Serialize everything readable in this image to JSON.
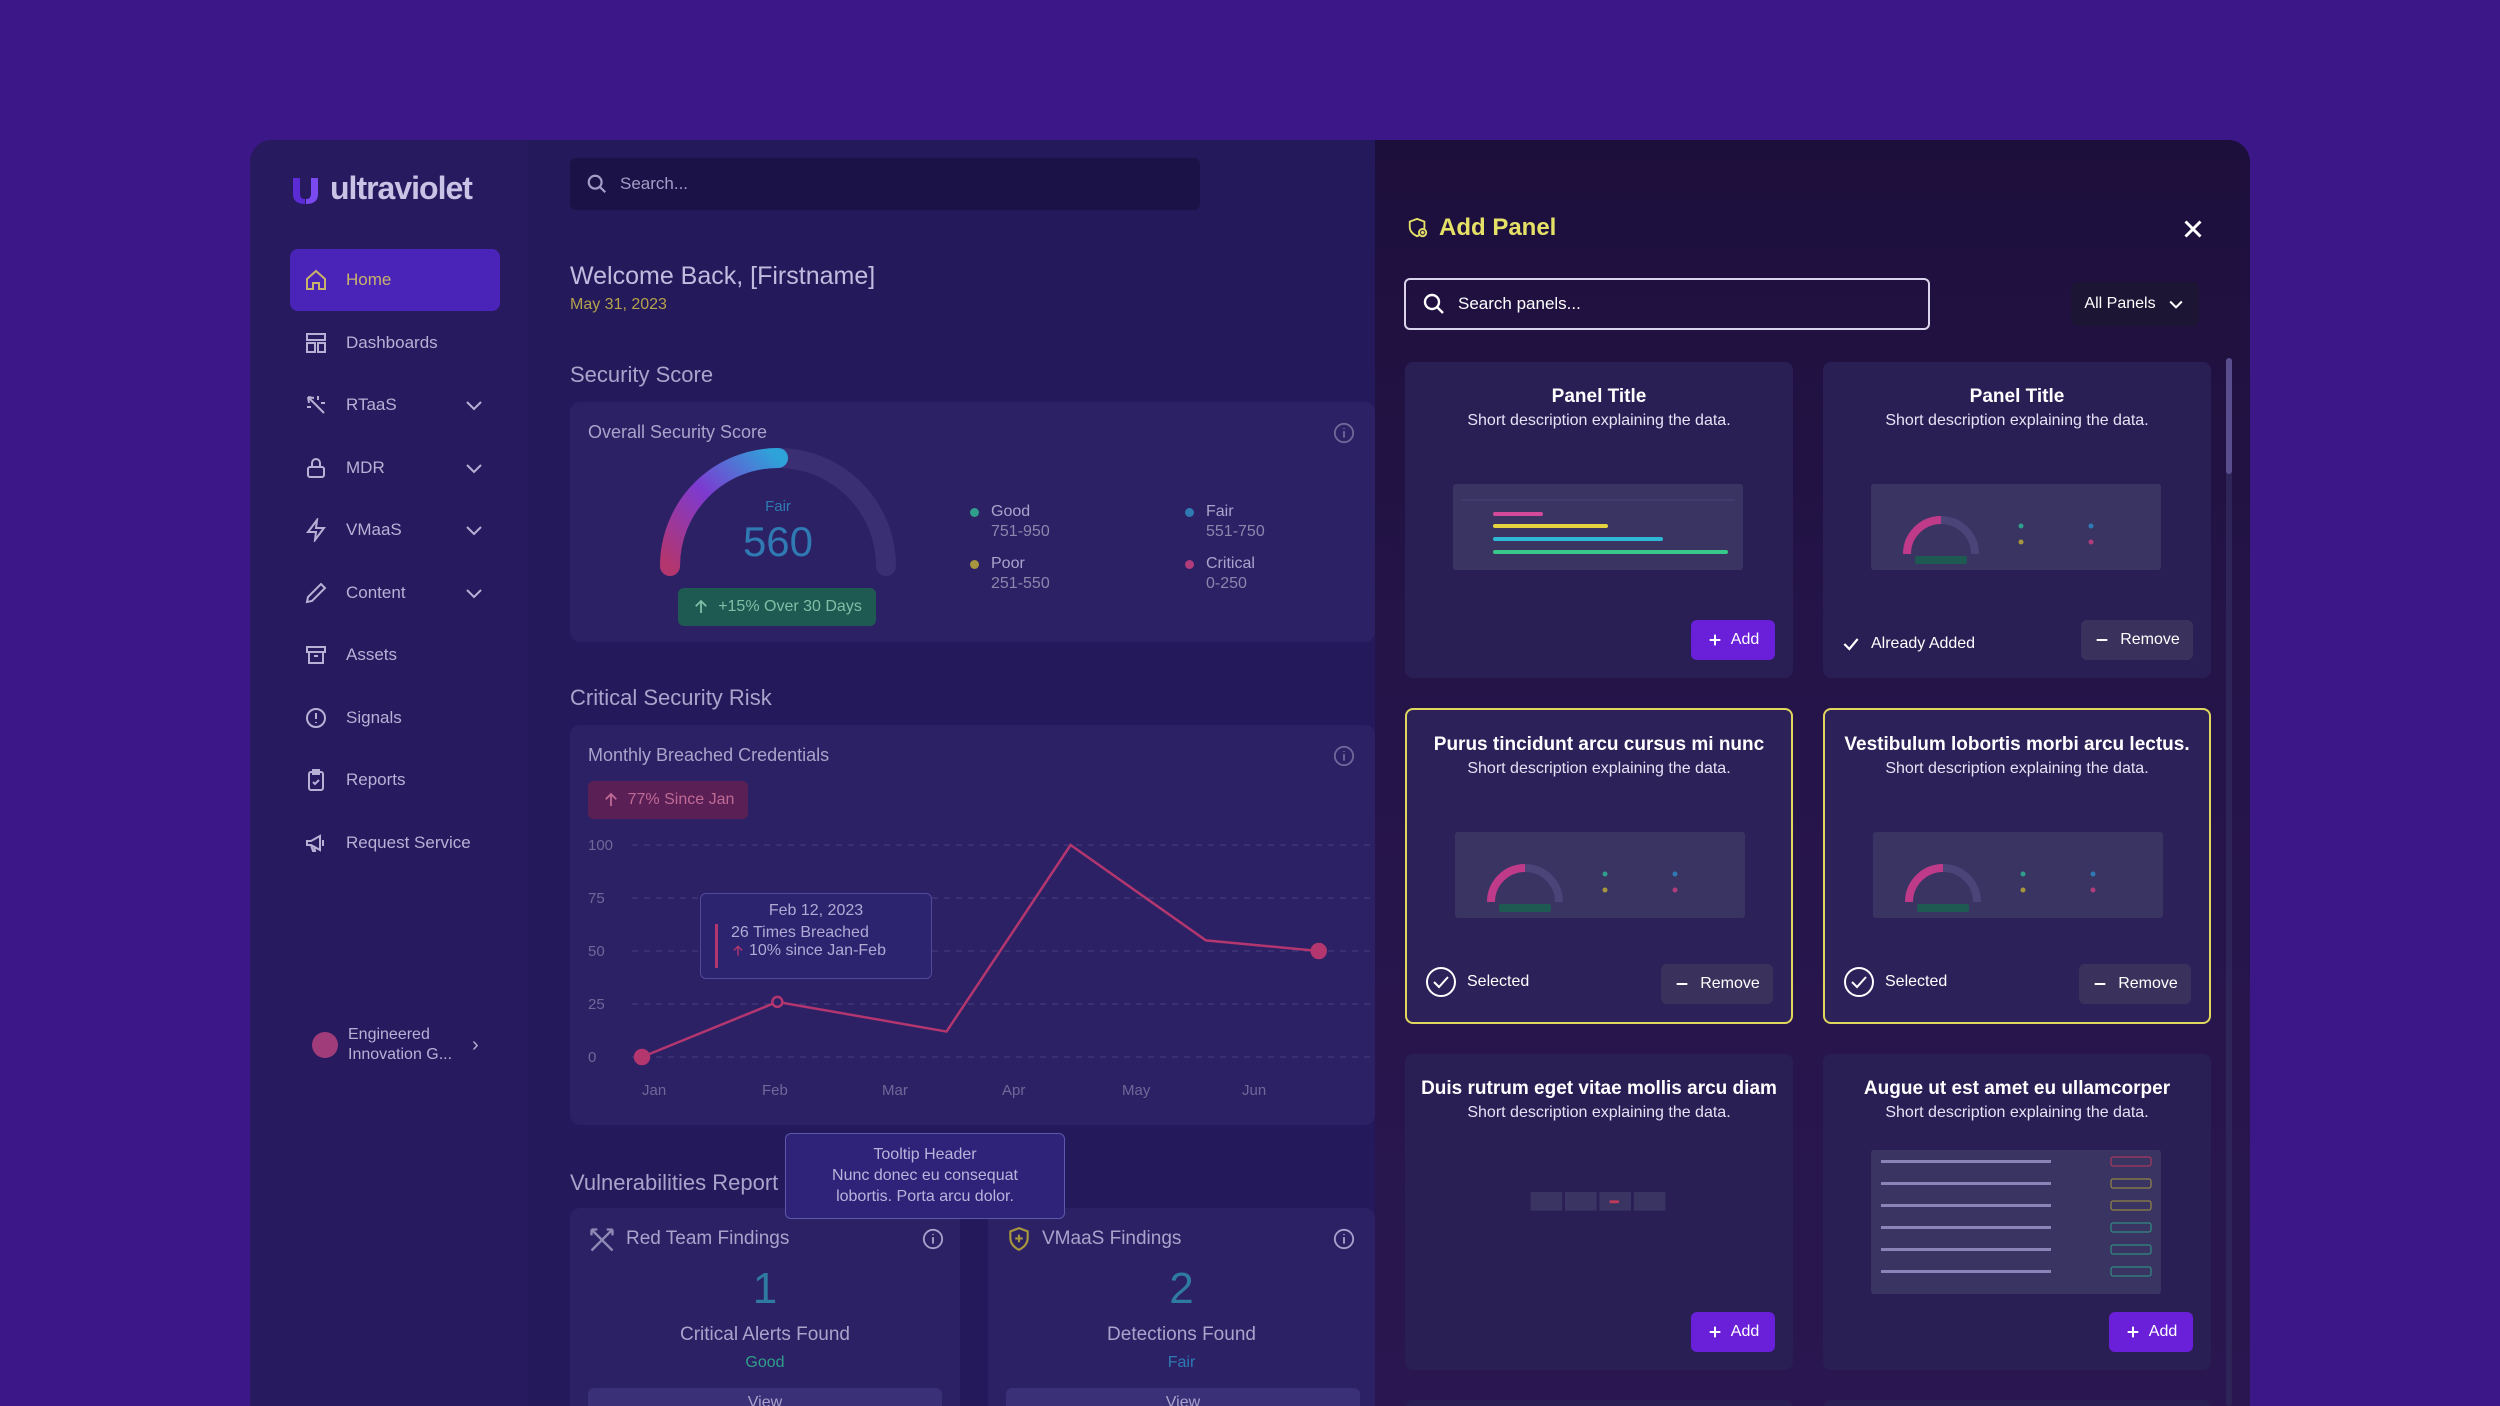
{
  "brand": {
    "name": "ultraviolet"
  },
  "sidebar": {
    "items": [
      {
        "label": "Home",
        "icon": "home-icon"
      },
      {
        "label": "Dashboards",
        "icon": "dashboard-icon"
      },
      {
        "label": "RTaaS",
        "icon": "target-icon"
      },
      {
        "label": "MDR",
        "icon": "lock-icon"
      },
      {
        "label": "VMaaS",
        "icon": "bolt-icon"
      },
      {
        "label": "Content",
        "icon": "pencil-icon"
      },
      {
        "label": "Assets",
        "icon": "archive-icon"
      },
      {
        "label": "Signals",
        "icon": "alert-circle-icon"
      },
      {
        "label": "Reports",
        "icon": "clipboard-icon"
      },
      {
        "label": "Request Service",
        "icon": "megaphone-icon"
      }
    ],
    "org": "Engineered Innovation G..."
  },
  "main": {
    "search_placeholder": "Search...",
    "welcome": "Welcome Back, [Firstname]",
    "date": "May 31, 2023",
    "security_score": {
      "section": "Security Score",
      "card_title": "Overall Security Score",
      "rating": "Fair",
      "value": "560",
      "trend": "+15% Over 30 Days",
      "legend": [
        {
          "label": "Good",
          "range": "751-950",
          "color": "#2f9e8a"
        },
        {
          "label": "Fair",
          "range": "551-750",
          "color": "#2f7ab3"
        },
        {
          "label": "Poor",
          "range": "251-550",
          "color": "#a6963e"
        },
        {
          "label": "Critical",
          "range": "0-250",
          "color": "#b03d7a"
        }
      ]
    },
    "risk": {
      "section": "Critical Security Risk",
      "card_title": "Monthly Breached Credentials",
      "badge": "77% Since Jan",
      "tooltip": {
        "date": "Feb 12, 2023",
        "line1": "26 Times Breached",
        "line2": "10% since Jan-Feb"
      }
    },
    "vulns": {
      "section": "Vulnerabilities Report",
      "tooltip": {
        "header": "Tooltip Header",
        "body": "Nunc donec eu consequat lobortis. Porta arcu dolor."
      },
      "red_team": {
        "title": "Red Team Findings",
        "count": "1",
        "label": "Critical Alerts Found",
        "status": "Good",
        "view": "View"
      },
      "vmaas": {
        "title": "VMaaS Findings",
        "count": "2",
        "label": "Detections Found",
        "status": "Fair",
        "view": "View"
      }
    }
  },
  "chart_data": {
    "type": "line",
    "title": "Monthly Breached Credentials",
    "categories": [
      "Jan",
      "Feb",
      "Mar",
      "Apr",
      "May",
      "Jun"
    ],
    "x": [
      0,
      1.2,
      2.7,
      3.8,
      5.0,
      6.0
    ],
    "values": [
      0,
      26,
      12,
      100,
      55,
      50
    ],
    "ylim": [
      0,
      100
    ],
    "yticks": [
      "100",
      "75",
      "50",
      "25",
      "0"
    ],
    "ytick_values": [
      100,
      75,
      50,
      25,
      0
    ],
    "xlim": [
      0,
      6.1
    ]
  },
  "drawer": {
    "title": "Add Panel",
    "search_placeholder": "Search panels...",
    "filter": "All Panels",
    "cards": [
      {
        "title": "Panel Title",
        "desc": "Short description explaining the data.",
        "state": "add",
        "action": "Add"
      },
      {
        "title": "Panel Title",
        "desc": "Short description explaining the data.",
        "state": "added",
        "status": "Already Added",
        "action": "Remove"
      },
      {
        "title": "Purus tincidunt arcu cursus mi nunc",
        "desc": "Short description explaining the data.",
        "state": "selected",
        "status": "Selected",
        "action": "Remove"
      },
      {
        "title": "Vestibulum lobortis morbi arcu lectus.",
        "desc": "Short description explaining the data.",
        "state": "selected",
        "status": "Selected",
        "action": "Remove"
      },
      {
        "title": "Duis rutrum eget vitae mollis arcu diam",
        "desc": "Short description explaining the data.",
        "state": "add",
        "action": "Add"
      },
      {
        "title": "Augue ut est amet eu ullamcorper",
        "desc": "Short description explaining the data.",
        "state": "add",
        "action": "Add"
      }
    ]
  },
  "colors": {
    "accent": "#6a1fd9",
    "selected_border": "#e0d65e",
    "line": "#b3366f"
  }
}
